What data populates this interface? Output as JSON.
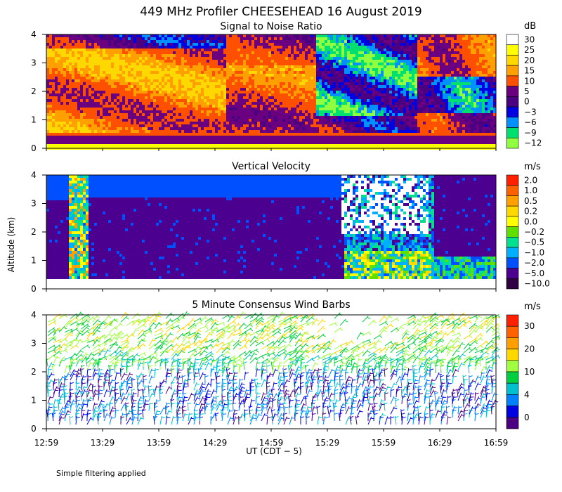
{
  "title": "449 MHz Profiler CHEESEHEAD 16 August 2019",
  "footnote": "Simple filtering applied",
  "chart_data": [
    {
      "type": "heatmap",
      "title": "Signal to Noise Ratio",
      "ylabel": "Altitude (km)",
      "ylim": [
        0,
        4
      ],
      "yticks": [
        "0",
        "1",
        "2",
        "3",
        "4"
      ],
      "colorbar_unit": "dB",
      "colorbar_labels": [
        "30",
        "25",
        "20",
        "15",
        "10",
        "5",
        "0",
        "−3",
        "−6",
        "−9",
        "−12"
      ],
      "colorbar_colors": [
        "#ffffff",
        "#ffff00",
        "#ffd800",
        "#ffa000",
        "#ff5000",
        "#6a0080",
        "#4b0082",
        "#0000e0",
        "#0090ff",
        "#00e070",
        "#90ff40"
      ]
    },
    {
      "type": "heatmap",
      "title": "Vertical Velocity",
      "ylabel": "Altitude (km)",
      "ylim": [
        0,
        4
      ],
      "yticks": [
        "0",
        "1",
        "2",
        "3",
        "4"
      ],
      "colorbar_unit": "m/s",
      "colorbar_labels": [
        "2.0",
        "1.0",
        "0.5",
        "0.2",
        "0.0",
        "−0.2",
        "−0.5",
        "−1.0",
        "−2.0",
        "−5.0",
        "−10.0"
      ],
      "colorbar_colors": [
        "#ff2000",
        "#ff6000",
        "#ffa000",
        "#ffd800",
        "#ffff00",
        "#60e000",
        "#00e090",
        "#00b0ff",
        "#0050ff",
        "#4b0090",
        "#300040"
      ]
    },
    {
      "type": "scatter",
      "title": "5 Minute Consensus Wind Barbs",
      "ylabel": "Altitude (km)",
      "ylim": [
        0,
        4
      ],
      "yticks": [
        "0",
        "1",
        "2",
        "3",
        "4"
      ],
      "colorbar_unit": "m/s",
      "colorbar_labels": [
        "30",
        "20",
        "10",
        "4",
        "0"
      ],
      "colorbar_colors": [
        "#ff2000",
        "#ff6000",
        "#ffa000",
        "#ffd800",
        "#a0ff40",
        "#00d040",
        "#00c0d0",
        "#0080ff",
        "#0000e0",
        "#4b0082"
      ]
    }
  ],
  "xaxis": {
    "label": "UT  (CDT − 5)",
    "ticks": [
      "12:59",
      "13:29",
      "13:59",
      "14:29",
      "14:59",
      "15:29",
      "15:59",
      "16:29",
      "16:59"
    ]
  }
}
